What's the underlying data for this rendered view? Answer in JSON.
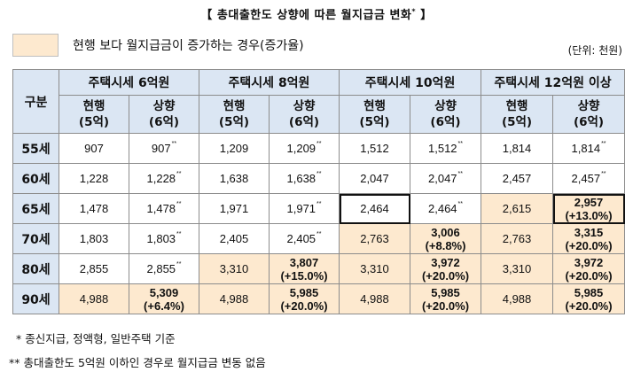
{
  "title": "【 총대출한도 상향에 따른 월지급금 변화",
  "title_mark": "*",
  "title_close": "】",
  "legend": {
    "text": "현행 보다 월지급금이 증가하는 경우(증가율)",
    "color": "#fde9cf"
  },
  "unit": "(단위: 천원)",
  "table": {
    "row_header_label": "구분",
    "groups": [
      "주택시세 6억원",
      "주택시세 8억원",
      "주택시세 10억원",
      "주택시세 12억원 이상"
    ],
    "sub_headers": [
      {
        "line1": "현행",
        "line2": "(5억)"
      },
      {
        "line1": "상향",
        "line2": "(6억)"
      },
      {
        "line1": "현행",
        "line2": "(5억)"
      },
      {
        "line1": "상향",
        "line2": "(6억)"
      },
      {
        "line1": "현행",
        "line2": "(5억)"
      },
      {
        "line1": "상향",
        "line2": "(6억)"
      },
      {
        "line1": "현행",
        "line2": "(5억)"
      },
      {
        "line1": "상향",
        "line2": "(6억)"
      }
    ],
    "rows": [
      {
        "age": "55세",
        "cells": [
          {
            "v": "907"
          },
          {
            "v": "907",
            "m": "**"
          },
          {
            "v": "1,209"
          },
          {
            "v": "1,209",
            "m": "**"
          },
          {
            "v": "1,512"
          },
          {
            "v": "1,512",
            "m": "**"
          },
          {
            "v": "1,814"
          },
          {
            "v": "1,814",
            "m": "**"
          }
        ]
      },
      {
        "age": "60세",
        "cells": [
          {
            "v": "1,228"
          },
          {
            "v": "1,228",
            "m": "**"
          },
          {
            "v": "1,638"
          },
          {
            "v": "1,638",
            "m": "**"
          },
          {
            "v": "2,047"
          },
          {
            "v": "2,047",
            "m": "**"
          },
          {
            "v": "2,457"
          },
          {
            "v": "2,457",
            "m": "**"
          }
        ]
      },
      {
        "age": "65세",
        "cells": [
          {
            "v": "1,478"
          },
          {
            "v": "1,478",
            "m": "**"
          },
          {
            "v": "1,971"
          },
          {
            "v": "1,971",
            "m": "**"
          },
          {
            "v": "2,464",
            "box": true
          },
          {
            "v": "2,464",
            "m": "**"
          },
          {
            "v": "2,615",
            "hi": true
          },
          {
            "v": "2,957",
            "p": "(+13.0%)",
            "hi": true,
            "bold": true,
            "box": true
          }
        ]
      },
      {
        "age": "70세",
        "cells": [
          {
            "v": "1,803"
          },
          {
            "v": "1,803",
            "m": "**"
          },
          {
            "v": "2,405"
          },
          {
            "v": "2,405",
            "m": "**"
          },
          {
            "v": "2,763",
            "hi": true
          },
          {
            "v": "3,006",
            "p": "(+8.8%)",
            "hi": true,
            "bold": true
          },
          {
            "v": "2,763",
            "hi": true
          },
          {
            "v": "3,315",
            "p": "(+20.0%)",
            "hi": true,
            "bold": true
          }
        ]
      },
      {
        "age": "80세",
        "cells": [
          {
            "v": "2,855"
          },
          {
            "v": "2,855",
            "m": "**"
          },
          {
            "v": "3,310",
            "hi": true
          },
          {
            "v": "3,807",
            "p": "(+15.0%)",
            "hi": true,
            "bold": true
          },
          {
            "v": "3,310",
            "hi": true
          },
          {
            "v": "3,972",
            "p": "(+20.0%)",
            "hi": true,
            "bold": true
          },
          {
            "v": "3,310",
            "hi": true
          },
          {
            "v": "3,972",
            "p": "(+20.0%)",
            "hi": true,
            "bold": true
          }
        ]
      },
      {
        "age": "90세",
        "cells": [
          {
            "v": "4,988",
            "hi": true
          },
          {
            "v": "5,309",
            "p": "(+6.4%)",
            "hi": true,
            "bold": true
          },
          {
            "v": "4,988",
            "hi": true
          },
          {
            "v": "5,985",
            "p": "(+20.0%)",
            "hi": true,
            "bold": true
          },
          {
            "v": "4,988",
            "hi": true
          },
          {
            "v": "5,985",
            "p": "(+20.0%)",
            "hi": true,
            "bold": true
          },
          {
            "v": "4,988",
            "hi": true
          },
          {
            "v": "5,985",
            "p": "(+20.0%)",
            "hi": true,
            "bold": true
          }
        ]
      }
    ]
  },
  "notes": [
    "* 종신지급, 정액형, 일반주택 기준",
    "** 총대출한도 5억원 이하인 경우로 월지급금 변동 없음"
  ]
}
